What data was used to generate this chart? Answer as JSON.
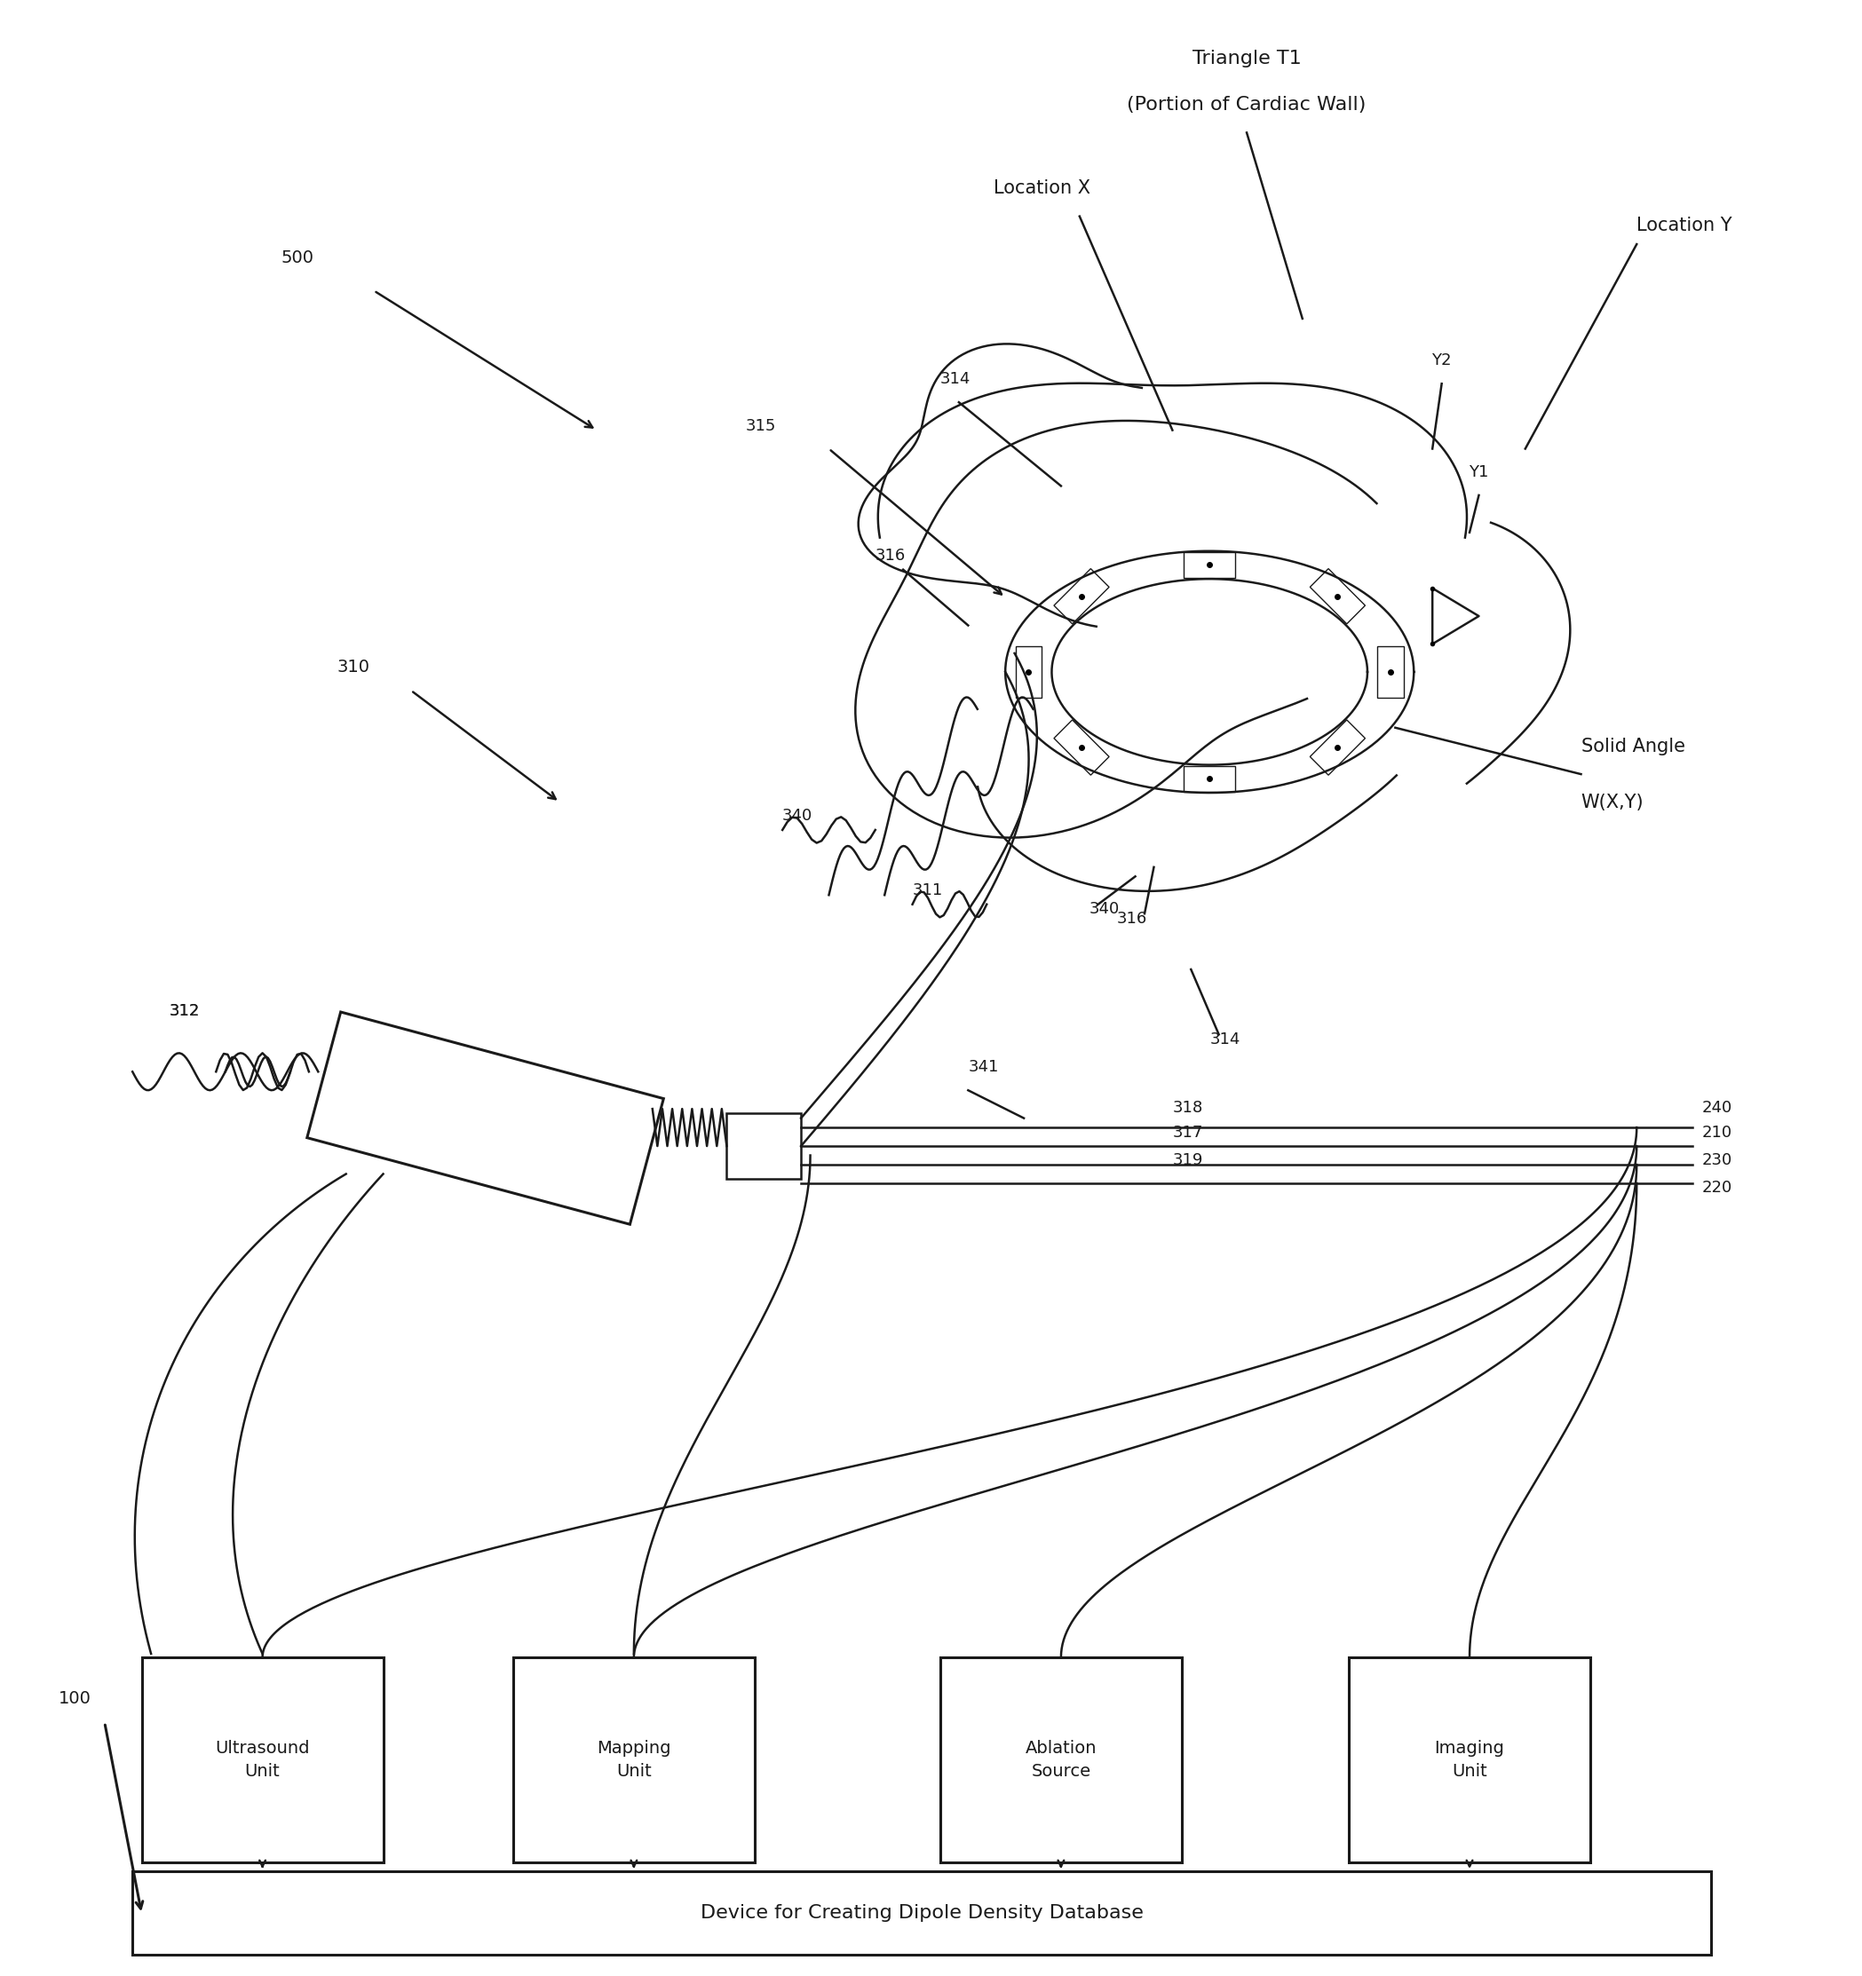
{
  "bg_color": "#ffffff",
  "line_color": "#1a1a1a",
  "fig_width": 20.97,
  "fig_height": 22.26,
  "labels": {
    "triangle_t1": "Triangle T1",
    "cardiac_wall": "(Portion of Cardiac Wall)",
    "location_x": "Location X",
    "location_y": "Location Y",
    "solid_angle_1": "Solid Angle",
    "solid_angle_2": "W(X,Y)",
    "y1": "Y1",
    "y2": "Y2",
    "num_500": "500",
    "num_310": "310",
    "num_312": "312",
    "num_315": "315",
    "num_316a": "316",
    "num_316b": "316",
    "num_314a": "314",
    "num_314b": "314",
    "num_340a": "340",
    "num_340b": "340",
    "num_311": "311",
    "num_341": "341",
    "num_318": "318",
    "num_317": "317",
    "num_319": "319",
    "num_240": "240",
    "num_210": "210",
    "num_230": "230",
    "num_220": "220",
    "num_100": "100",
    "box_ultrasound": "Ultrasound\nUnit",
    "box_mapping": "Mapping\nUnit",
    "box_ablation": "Ablation\nSource",
    "box_imaging": "Imaging\nUnit",
    "box_dipole": "Device for Creating Dipole Density Database"
  }
}
